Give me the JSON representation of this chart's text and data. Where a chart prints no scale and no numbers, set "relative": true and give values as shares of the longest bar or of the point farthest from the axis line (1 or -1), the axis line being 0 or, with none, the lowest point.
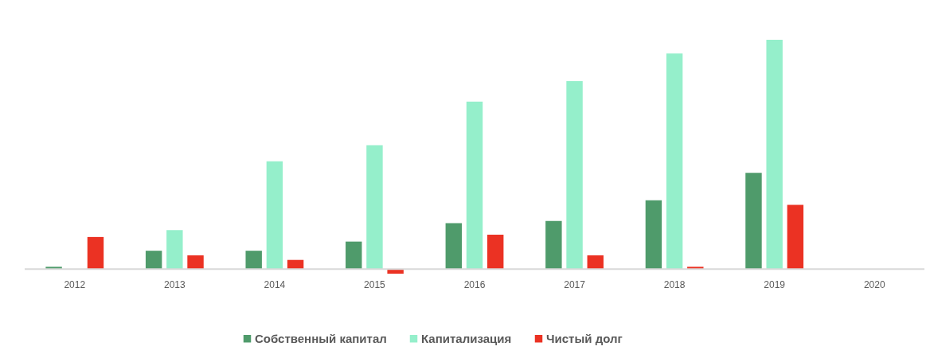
{
  "chart_data": {
    "type": "bar",
    "relative": true,
    "legend": "bottom",
    "categories": [
      "2012",
      "2013",
      "2014",
      "2015",
      "2016",
      "2017",
      "2018",
      "2019",
      "2020"
    ],
    "series": [
      {
        "name": "Собственный капитал",
        "color": "#4f9b6b",
        "values": [
          0.01,
          0.08,
          0.08,
          0.12,
          0.2,
          0.21,
          0.3,
          0.42,
          null
        ]
      },
      {
        "name": "Капитализация",
        "color": "#95efcb",
        "values": [
          null,
          0.17,
          0.47,
          0.54,
          0.73,
          0.82,
          0.94,
          1,
          null
        ]
      },
      {
        "name": "Чистый долг",
        "color": "#eb3223",
        "values": [
          0.14,
          0.06,
          0.04,
          -0.02,
          0.15,
          0.06,
          0.01,
          0.28,
          null
        ]
      }
    ]
  }
}
